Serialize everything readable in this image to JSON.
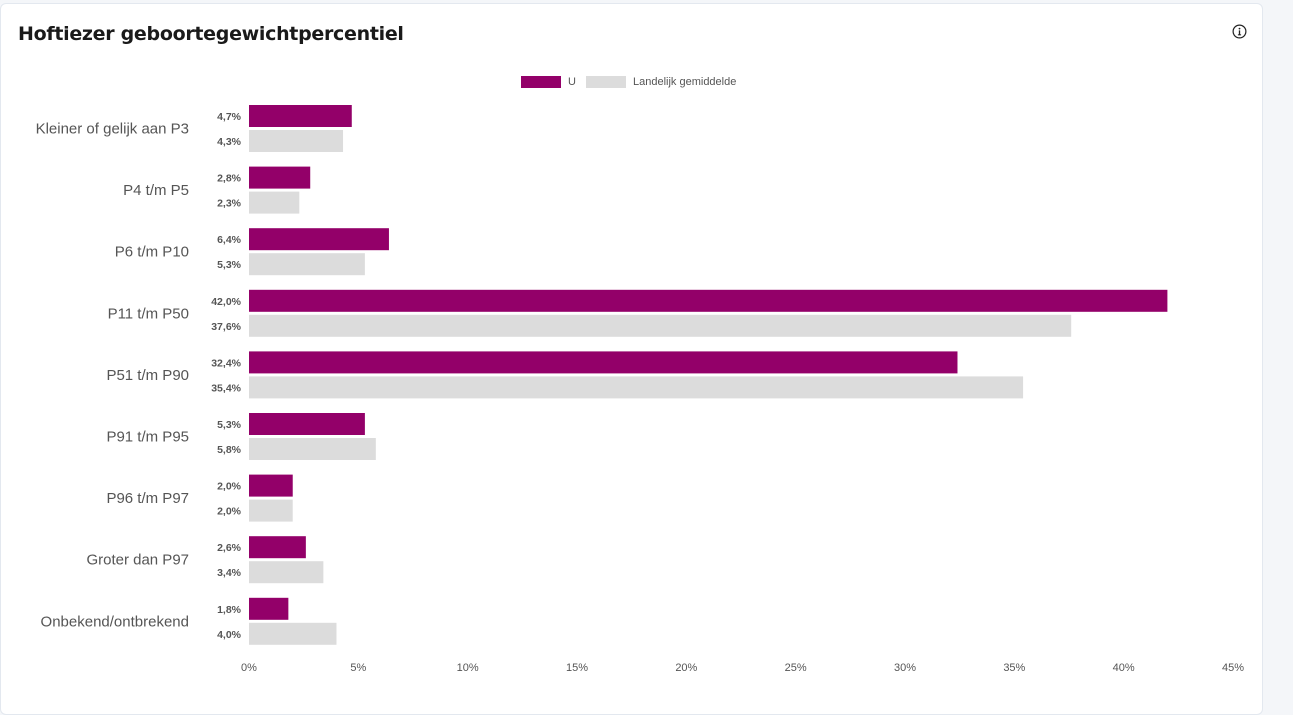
{
  "card": {
    "title": "Hoftiezer geboortegewichtpercentiel",
    "info_icon": "info-circle-icon"
  },
  "chart_data": {
    "type": "bar",
    "orientation": "horizontal",
    "title": "",
    "categories": [
      "Kleiner of gelijk aan P3",
      "P4 t/m P5",
      "P6 t/m P10",
      "P11 t/m P50",
      "P51 t/m P90",
      "P91 t/m P95",
      "P96 t/m P97",
      "Groter dan P97",
      "Onbekend/ontbrekend"
    ],
    "series": [
      {
        "name": "U",
        "color": "#930069",
        "values": [
          4.7,
          2.8,
          6.4,
          42.0,
          32.4,
          5.3,
          2.0,
          2.6,
          1.8
        ],
        "labels": [
          "4,7%",
          "2,8%",
          "6,4%",
          "42,0%",
          "32,4%",
          "5,3%",
          "2,0%",
          "2,6%",
          "1,8%"
        ]
      },
      {
        "name": "Landelijk gemiddelde",
        "color": "#dcdcdc",
        "values": [
          4.3,
          2.3,
          5.3,
          37.6,
          35.4,
          5.8,
          2.0,
          3.4,
          4.0
        ],
        "labels": [
          "4,3%",
          "2,3%",
          "5,3%",
          "37,6%",
          "35,4%",
          "5,8%",
          "2,0%",
          "3,4%",
          "4,0%"
        ]
      }
    ],
    "xlim": [
      0,
      45
    ],
    "xticks": [
      0,
      5,
      10,
      15,
      20,
      25,
      30,
      35,
      40,
      45
    ],
    "xtick_labels": [
      "0%",
      "5%",
      "10%",
      "15%",
      "20%",
      "25%",
      "30%",
      "35%",
      "40%",
      "45%"
    ],
    "legend_position": "top-center",
    "grid": false
  }
}
